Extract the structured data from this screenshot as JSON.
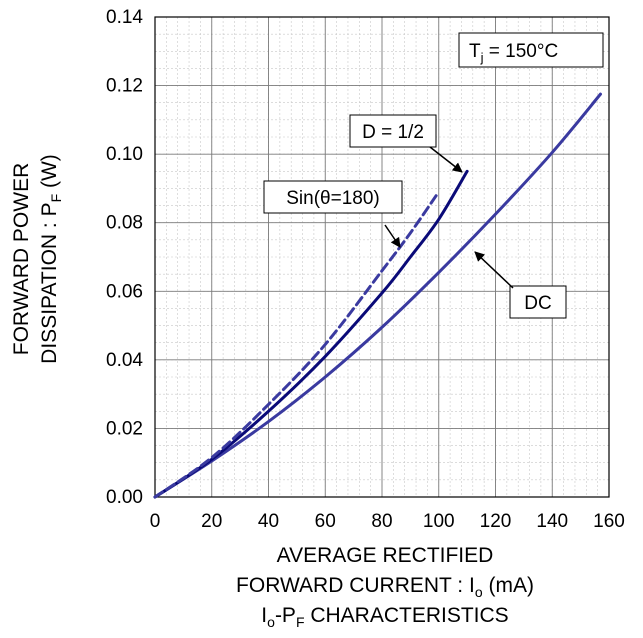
{
  "chart_data": {
    "type": "line",
    "title": "",
    "caption": {
      "main": "I",
      "sub1": "o",
      "dash": "-P",
      "sub2": "F",
      "rest": " CHARACTERISTICS"
    },
    "xlabel": {
      "line1": "AVERAGE RECTIFIED",
      "line2_main": "FORWARD CURRENT : I",
      "line2_sub": "o",
      "line2_unit": " (mA)"
    },
    "ylabel": {
      "line1": "FORWARD POWER",
      "line2_main": "DISSIPATION : P",
      "line2_sub": "F",
      "line2_unit": " (W)"
    },
    "xlim": [
      0,
      160
    ],
    "ylim": [
      0,
      0.14
    ],
    "x_major_step": 20,
    "y_major_step": 0.02,
    "x_minor_step": 4,
    "y_minor_step": 0.005,
    "x_ticks": [
      "0",
      "20",
      "40",
      "60",
      "80",
      "100",
      "120",
      "140",
      "160"
    ],
    "y_ticks": [
      "0.00",
      "0.02",
      "0.04",
      "0.06",
      "0.08",
      "0.10",
      "0.12",
      "0.14"
    ],
    "grid": true,
    "series": [
      {
        "label": "DC",
        "color": "#3a3aa0",
        "style": "solid",
        "points": [
          [
            0,
            0
          ],
          [
            20,
            0.0105
          ],
          [
            40,
            0.022
          ],
          [
            60,
            0.035
          ],
          [
            80,
            0.0495
          ],
          [
            100,
            0.0655
          ],
          [
            120,
            0.0825
          ],
          [
            140,
            0.1005
          ],
          [
            157,
            0.1175
          ]
        ]
      },
      {
        "label": "D = 1/2",
        "color": "#0a0a78",
        "style": "solid",
        "points": [
          [
            0,
            0
          ],
          [
            20,
            0.011
          ],
          [
            40,
            0.025
          ],
          [
            60,
            0.041
          ],
          [
            80,
            0.0595
          ],
          [
            90,
            0.07
          ],
          [
            100,
            0.081
          ],
          [
            110,
            0.095
          ]
        ]
      },
      {
        "label": "Sin(θ=180)",
        "color": "#3a3aa0",
        "style": "dashed",
        "points": [
          [
            0,
            0
          ],
          [
            20,
            0.0115
          ],
          [
            40,
            0.027
          ],
          [
            60,
            0.0445
          ],
          [
            80,
            0.066
          ],
          [
            90,
            0.077
          ],
          [
            100,
            0.089
          ]
        ]
      }
    ],
    "annotations": [
      {
        "id": "tj",
        "text_main": "T",
        "text_sub": "j",
        "text_rest": " = 150°C"
      },
      {
        "id": "d",
        "text": "D = 1/2",
        "arrow_to": [
          110,
          0.095
        ]
      },
      {
        "id": "sin",
        "text": "Sin(θ=180)",
        "arrow_to": [
          90,
          0.074
        ]
      },
      {
        "id": "dc",
        "text": "DC",
        "arrow_to": [
          103,
          0.071
        ]
      }
    ]
  }
}
